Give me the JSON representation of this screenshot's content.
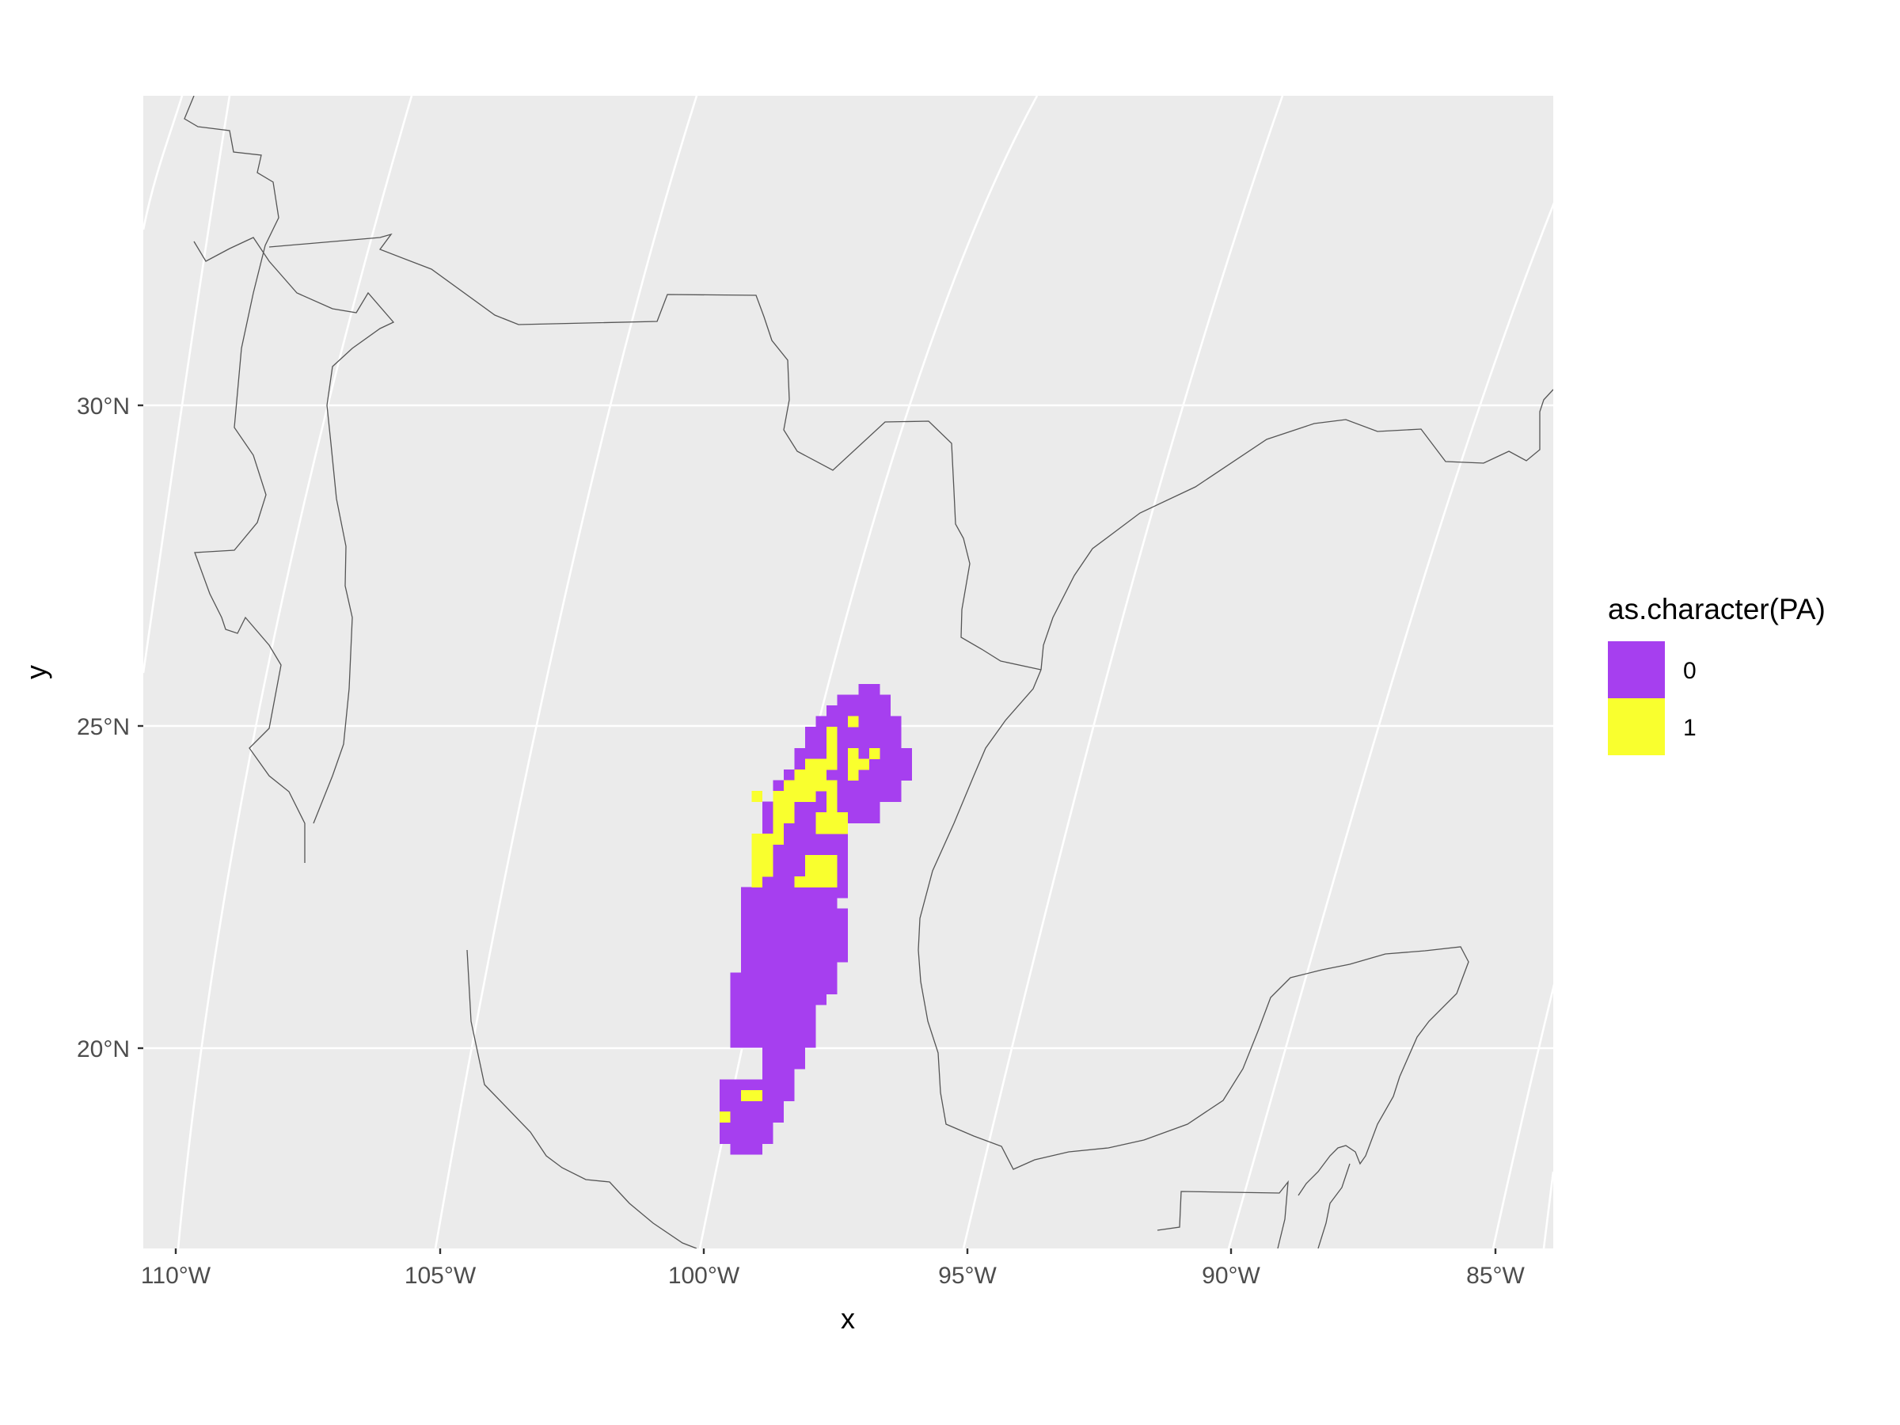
{
  "chart_data": {
    "type": "map",
    "projection": "Lambert conformal conic, graticule lines curved",
    "xlabel": "x",
    "ylabel": "y",
    "x_ticks": [
      "110°W",
      "105°W",
      "100°W",
      "95°W",
      "90°W",
      "85°W"
    ],
    "y_ticks": [
      "20°N",
      "25°N",
      "30°N"
    ],
    "region": "Mexico, southern United States, Guatemala, Belize",
    "legend": {
      "title": "as.character(PA)",
      "placement": "right",
      "entries": [
        {
          "label": "0",
          "color": "#a63fef"
        },
        {
          "label": "1",
          "color": "#f9ff2e"
        }
      ]
    },
    "raster": {
      "description": "Presence/absence grid cells along the Sierra Madre Oriental, eastern Mexico",
      "approx_lat_range": [
        18.1,
        25.6
      ],
      "approx_lon_range": [
        -99.6,
        -95.7
      ],
      "absence_value": "0",
      "presence_value": "1"
    },
    "panel_background": "#ebebeb",
    "grid": true
  }
}
